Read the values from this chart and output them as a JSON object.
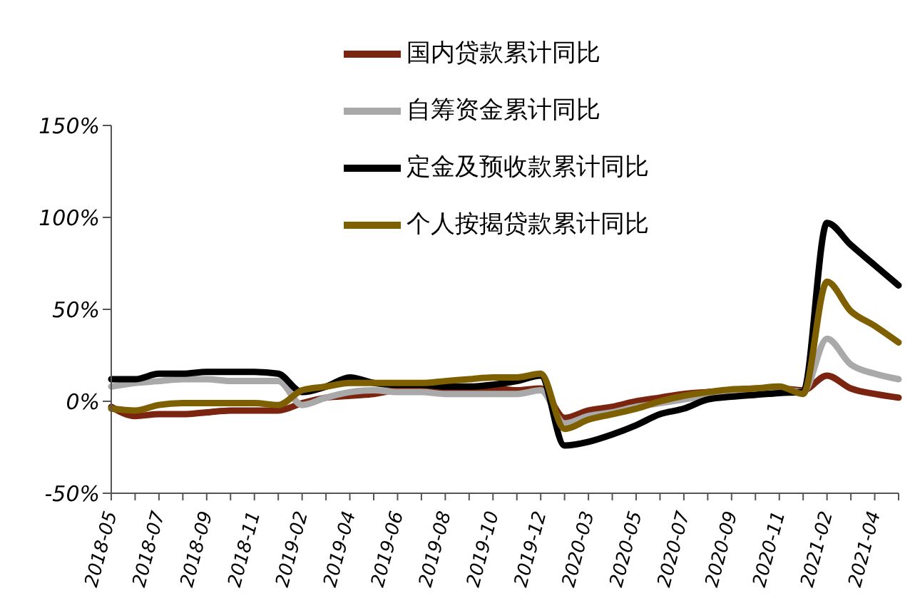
{
  "chart_data": {
    "type": "line",
    "categories": [
      "2018-05",
      null,
      "2018-07",
      null,
      "2018-09",
      null,
      "2018-11",
      null,
      "2019-02",
      null,
      "2019-04",
      null,
      "2019-06",
      null,
      "2019-08",
      null,
      "2019-10",
      null,
      "2019-12",
      null,
      "2020-03",
      null,
      "2020-05",
      null,
      "2020-07",
      null,
      "2020-09",
      null,
      "2020-11",
      null,
      "2021-02",
      null,
      "2021-04",
      null
    ],
    "series": [
      {
        "name": "国内贷款累计同比",
        "color": "#7b2410",
        "values": [
          -3,
          -8,
          -7,
          -7,
          -6,
          -5,
          -5,
          -5,
          -1,
          2,
          3,
          4,
          6,
          6,
          6,
          7,
          7,
          6,
          7,
          -9,
          -5,
          -3,
          0,
          2,
          4,
          5,
          6,
          7,
          7,
          6,
          14,
          7,
          4,
          2
        ]
      },
      {
        "name": "自筹资金累计同比",
        "color": "#a9a9a9",
        "values": [
          8,
          10,
          11,
          12,
          12,
          11,
          11,
          11,
          -2,
          2,
          5,
          6,
          5,
          5,
          4,
          4,
          4,
          4,
          6,
          -12,
          -8,
          -6,
          -3,
          -1,
          1,
          3,
          5,
          6,
          7,
          5,
          34,
          20,
          15,
          12
        ]
      },
      {
        "name": "定金及预收款累计同比",
        "color": "#000000",
        "values": [
          12,
          12,
          15,
          15,
          16,
          16,
          16,
          15,
          5,
          8,
          13,
          10,
          9,
          9,
          8,
          8,
          9,
          11,
          14,
          -24,
          -22,
          -18,
          -13,
          -7,
          -4,
          1,
          2.5,
          3.5,
          4.5,
          5,
          97,
          85,
          74,
          63
        ]
      },
      {
        "name": "个人按揭贷款累计同比",
        "color": "#7f6000",
        "values": [
          -4,
          -5,
          -2,
          -1,
          -1,
          -1,
          -1,
          -2,
          6,
          8,
          10,
          10,
          10,
          10,
          11,
          12,
          13,
          13,
          15,
          -15,
          -10,
          -7,
          -4,
          0,
          3,
          5,
          6.5,
          7,
          8,
          4,
          65,
          49,
          41,
          32
        ]
      }
    ],
    "ylim": [
      -50,
      150
    ],
    "yticks": [
      {
        "value": -50,
        "label": "-50%"
      },
      {
        "value": 0,
        "label": "0%"
      },
      {
        "value": 50,
        "label": "50%"
      },
      {
        "value": 100,
        "label": "100%"
      },
      {
        "value": 150,
        "label": "150%"
      }
    ],
    "grid": false,
    "legend": "top",
    "marker": "none",
    "line_style": "solid"
  }
}
